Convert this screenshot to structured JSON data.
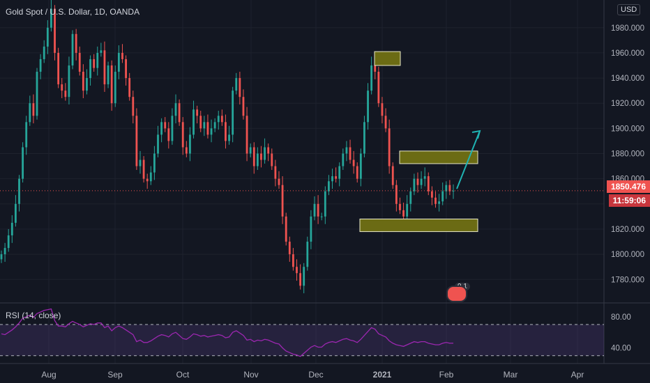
{
  "header": {
    "symbol": "Gold Spot / U.S. Dollar, 1D, OANDA",
    "currency": "USD"
  },
  "price_badge": {
    "last": "1850.476",
    "countdown": "11:59:06",
    "color": "#ef5350"
  },
  "indicator": {
    "label": "RSI (14, close)",
    "ticks": [
      "80.00",
      "40.00"
    ]
  },
  "events": {
    "count": "9 1"
  },
  "colors": {
    "up": "#26a69a",
    "down": "#ef5350",
    "zone": "#6b6b14",
    "arrow": "#1fb3b3",
    "rsi": "#9c27b0"
  },
  "chart_data": [
    {
      "type": "candlestick",
      "title": "Gold Spot / U.S. Dollar, 1D, OANDA",
      "x_ticks": [
        "Aug",
        "Sep",
        "Oct",
        "Nov",
        "Dec",
        "2021",
        "Feb",
        "Mar",
        "Apr"
      ],
      "y_ticks": [
        1780,
        1800,
        1820,
        1840,
        1860,
        1880,
        1900,
        1920,
        1940,
        1960,
        1980
      ],
      "ylim": [
        1763,
        2002
      ],
      "last_price": 1850.476,
      "close_series": [
        1800,
        1805,
        1815,
        1825,
        1840,
        1860,
        1885,
        1905,
        1920,
        1910,
        1945,
        1955,
        1965,
        1980,
        1995,
        1960,
        1935,
        1930,
        1925,
        1950,
        1975,
        1960,
        1945,
        1930,
        1940,
        1955,
        1948,
        1960,
        1962,
        1935,
        1950,
        1920,
        1945,
        1960,
        1955,
        1940,
        1925,
        1910,
        1870,
        1875,
        1860,
        1858,
        1865,
        1880,
        1895,
        1905,
        1900,
        1890,
        1910,
        1920,
        1905,
        1885,
        1880,
        1895,
        1915,
        1910,
        1900,
        1905,
        1895,
        1900,
        1905,
        1910,
        1905,
        1890,
        1895,
        1930,
        1940,
        1925,
        1910,
        1880,
        1885,
        1870,
        1880,
        1875,
        1885,
        1880,
        1870,
        1860,
        1855,
        1830,
        1810,
        1800,
        1790,
        1785,
        1775,
        1790,
        1810,
        1830,
        1840,
        1830,
        1830,
        1850,
        1858,
        1862,
        1860,
        1870,
        1880,
        1885,
        1875,
        1870,
        1860,
        1880,
        1905,
        1930,
        1950,
        1945,
        1920,
        1910,
        1900,
        1870,
        1855,
        1840,
        1835,
        1830,
        1840,
        1850,
        1860,
        1855,
        1860,
        1862,
        1850,
        1845,
        1840,
        1842,
        1850,
        1855,
        1850,
        1850.476
      ],
      "annotations": [
        {
          "type": "zone",
          "price_range": [
            1950,
            1961
          ],
          "label": ""
        },
        {
          "type": "zone",
          "price_range": [
            1872,
            1882
          ],
          "label": ""
        },
        {
          "type": "zone",
          "price_range": [
            1818,
            1828
          ],
          "label": ""
        },
        {
          "type": "arrow",
          "from_price": 1852,
          "to_price": 1898,
          "direction": "up"
        }
      ]
    },
    {
      "type": "line",
      "title": "RSI (14, close)",
      "y_ticks": [
        80,
        40
      ],
      "band": [
        70,
        30
      ],
      "ylim": [
        20,
        95
      ],
      "values": [
        58,
        57,
        60,
        63,
        67,
        72,
        78,
        80,
        82,
        79,
        84,
        86,
        88,
        89,
        90,
        75,
        68,
        68,
        67,
        71,
        74,
        72,
        70,
        67,
        69,
        71,
        70,
        72,
        72,
        66,
        68,
        62,
        66,
        68,
        66,
        63,
        60,
        57,
        48,
        50,
        47,
        47,
        49,
        52,
        55,
        57,
        56,
        54,
        58,
        60,
        56,
        52,
        51,
        54,
        58,
        57,
        55,
        56,
        54,
        55,
        56,
        57,
        56,
        53,
        54,
        60,
        62,
        59,
        56,
        50,
        51,
        48,
        50,
        49,
        51,
        50,
        48,
        46,
        45,
        40,
        36,
        34,
        32,
        31,
        29,
        33,
        37,
        41,
        43,
        41,
        41,
        45,
        47,
        48,
        47,
        49,
        51,
        52,
        50,
        49,
        47,
        51,
        56,
        61,
        66,
        64,
        58,
        56,
        54,
        49,
        46,
        44,
        43,
        42,
        44,
        46,
        48,
        47,
        48,
        48,
        46,
        45,
        44,
        44,
        46,
        47,
        46,
        46
      ]
    }
  ]
}
